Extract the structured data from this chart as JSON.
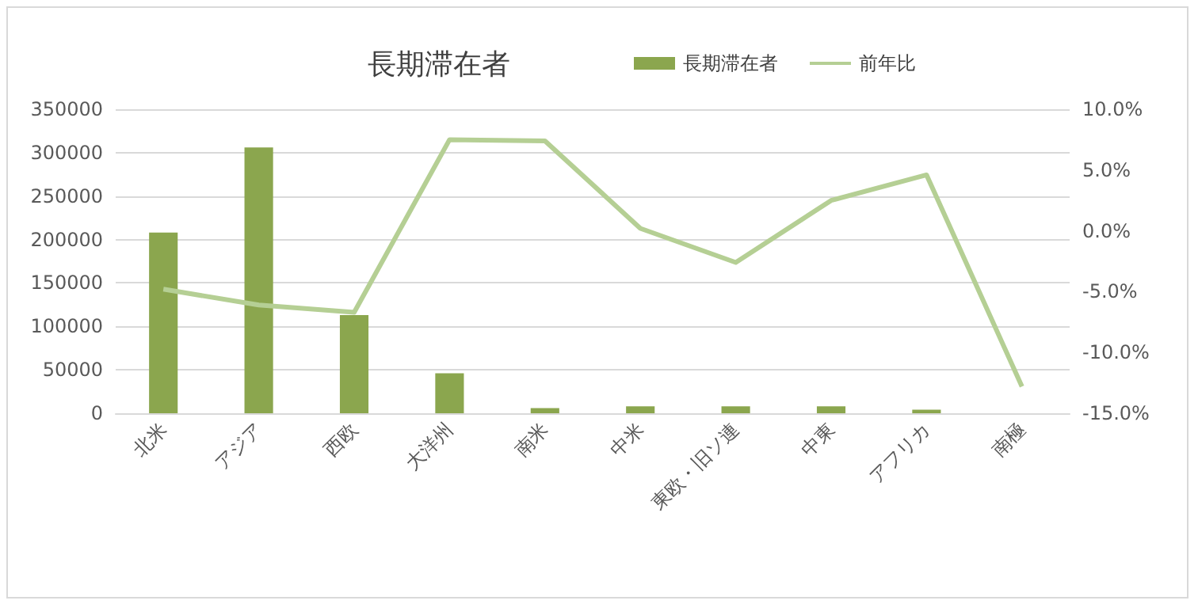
{
  "chart_data": {
    "type": "bar",
    "title": "長期滞在者",
    "categories": [
      "北米",
      "アジア",
      "西欧",
      "大洋州",
      "南米",
      "中米",
      "東欧・旧ソ連",
      "中東",
      "アフリカ",
      "南極"
    ],
    "series": [
      {
        "name": "長期滞在者",
        "color": "#8ba64e",
        "values": [
          208000,
          306000,
          113000,
          46000,
          6000,
          8000,
          8000,
          8000,
          4000,
          0
        ]
      },
      {
        "name": "前年比",
        "type": "line",
        "axis": "y2",
        "color": "#b5cf94",
        "values": [
          -4.8,
          -6.1,
          -6.7,
          7.5,
          7.4,
          0.2,
          -2.6,
          2.5,
          4.6,
          -12.8
        ]
      }
    ],
    "ylim": [
      0,
      350000
    ],
    "yticks": [
      0,
      50000,
      100000,
      150000,
      200000,
      250000,
      300000,
      350000
    ],
    "y2lim": [
      -15,
      10
    ],
    "y2ticks": [
      {
        "value": -15,
        "label": "-15.0%"
      },
      {
        "value": -10,
        "label": "-10.0%"
      },
      {
        "value": -5,
        "label": "-5.0%"
      },
      {
        "value": 0,
        "label": "0.0%"
      },
      {
        "value": 5,
        "label": "5.0%"
      },
      {
        "value": 10,
        "label": "10.0%"
      }
    ],
    "grid": "y",
    "legend": "top right",
    "marker": "none"
  }
}
